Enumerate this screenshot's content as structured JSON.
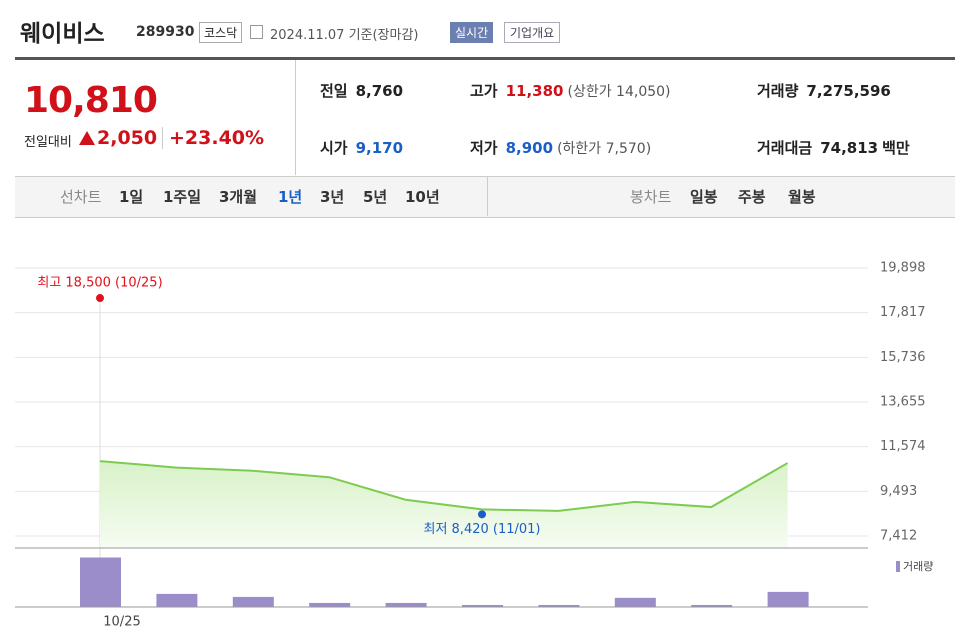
{
  "header": {
    "name": "웨이비스",
    "code": "289930",
    "market": "코스닥",
    "date": "2024.11.07 기준(장마감)",
    "buttons": [
      "실시간",
      "기업개요"
    ]
  },
  "price": {
    "current": "10,810",
    "change_label": "전일대비",
    "change": "2,050",
    "change_rate": "+23.40%"
  },
  "stats": [
    {
      "label": "전일",
      "value": "8,760"
    },
    {
      "label": "고가",
      "value": "11,380",
      "extra": "(상한가 14,050)"
    },
    {
      "label": "거래량",
      "value": "7,275,596"
    },
    {
      "label": "시가",
      "value": "9,170"
    },
    {
      "label": "저가",
      "value": "8,900",
      "extra": "(하한가 7,570)"
    },
    {
      "label": "거래대금",
      "value": "74,813",
      "unit": "백만"
    }
  ],
  "tabs": {
    "line_label": "선차트",
    "periods": [
      "1일",
      "1주일",
      "3개월",
      "1년",
      "3년",
      "5년",
      "10년"
    ],
    "candle_label": "봉차트",
    "candles": [
      "일봉",
      "주봉",
      "월봉"
    ]
  },
  "chart_data": [
    {
      "type": "line",
      "categories": [
        "10/25",
        null,
        null,
        null,
        null,
        null,
        null,
        null,
        null,
        null
      ],
      "series": [
        {
          "color": "#7dcb50",
          "values": [
            10900,
            10600,
            10450,
            10150,
            9100,
            8650,
            8580,
            9000,
            8760,
            10810
          ]
        }
      ],
      "ylim": [
        6852,
        20971
      ],
      "yticks": [
        {
          "value": 19898,
          "label": "19,898"
        },
        {
          "value": 17817,
          "label": "17,817"
        },
        {
          "value": 15736,
          "label": "15,736"
        },
        {
          "value": 13655,
          "label": "13,655"
        },
        {
          "value": 11574,
          "label": "11,574"
        },
        {
          "value": 9493,
          "label": "9,493"
        },
        {
          "value": 7412,
          "label": "7,412"
        }
      ],
      "grid": true,
      "annotations": [
        {
          "label": "최고 18,500 (10/25)",
          "value": 18500,
          "index": 0,
          "color": "#e0111a"
        },
        {
          "label": "최저 8,420 (11/01)",
          "value": 8420,
          "index": 5,
          "color": "#1a5fc6"
        }
      ]
    },
    {
      "type": "bar",
      "series": [
        {
          "name": "거래량",
          "color": "#9b8cca",
          "values": [
            23800000,
            6300000,
            4850000,
            1950000,
            1950000,
            970000,
            970000,
            4400000,
            970000,
            7275596
          ]
        }
      ],
      "ylim": [
        0,
        25000000
      ]
    }
  ]
}
